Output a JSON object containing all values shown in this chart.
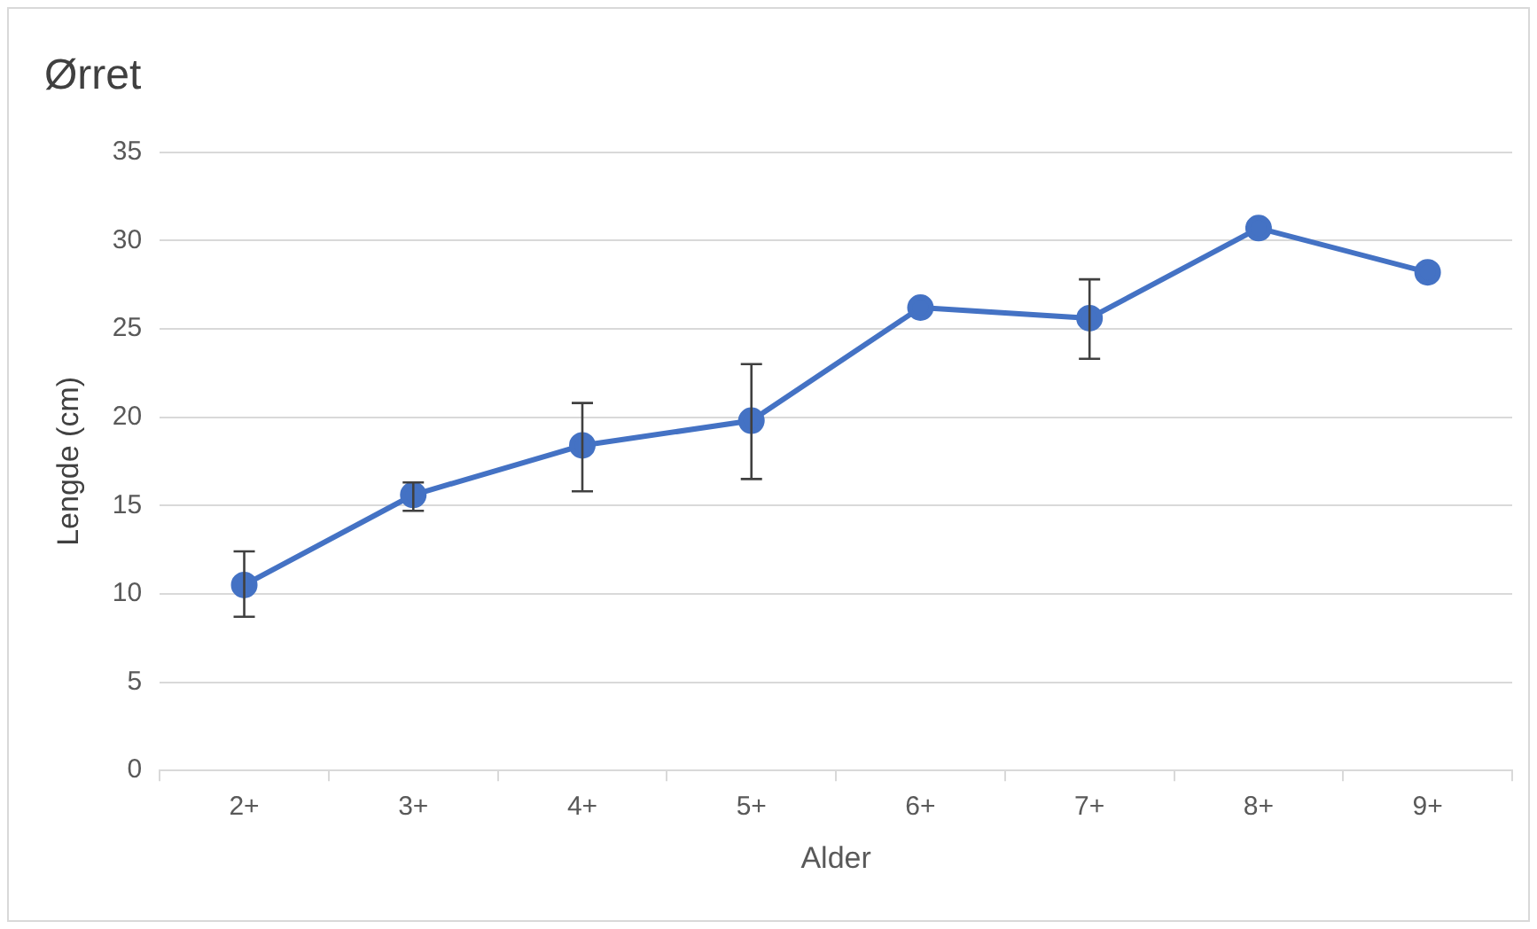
{
  "chart_data": {
    "type": "line",
    "title": "Ørret",
    "xlabel": "Alder",
    "ylabel": "Lengde (cm)",
    "categories": [
      "2+",
      "3+",
      "4+",
      "5+",
      "6+",
      "7+",
      "8+",
      "9+"
    ],
    "series": [
      {
        "color": "#4472c4",
        "values": [
          10.5,
          15.6,
          18.4,
          19.8,
          26.2,
          25.6,
          30.7,
          28.2
        ],
        "errors": [
          [
            8.7,
            12.4
          ],
          [
            14.7,
            16.3
          ],
          [
            15.8,
            20.8
          ],
          [
            16.5,
            23.0
          ],
          null,
          [
            23.3,
            27.8
          ],
          null,
          null
        ]
      }
    ],
    "ylim": [
      0,
      35
    ],
    "yticks": [
      0,
      5,
      10,
      15,
      20,
      25,
      30,
      35
    ],
    "grid": "y",
    "legend": false,
    "marker": "circle",
    "line_style": "solid"
  }
}
